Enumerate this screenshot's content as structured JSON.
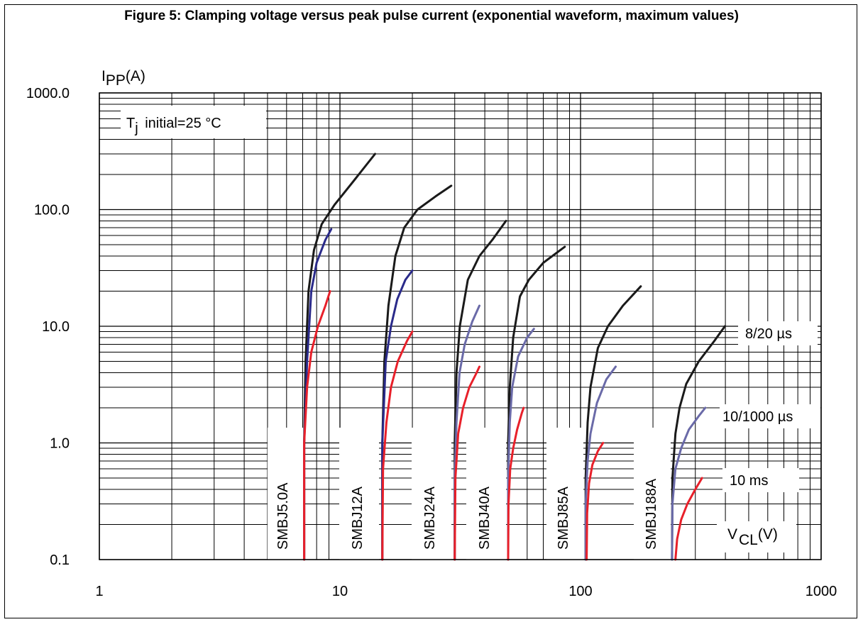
{
  "figure_title": "Figure 5: Clamping voltage versus peak pulse current (exponential waveform, maximum values)",
  "chart_data": {
    "type": "line",
    "title": "Figure 5: Clamping voltage versus peak pulse current (exponential waveform, maximum values)",
    "xlabel": "VCL(V)",
    "ylabel": "IPP(A)",
    "x_scale": "log",
    "y_scale": "log",
    "xlim": [
      1,
      1000
    ],
    "ylim": [
      0.1,
      1000
    ],
    "grid": true,
    "x_ticks": [
      "1",
      "10",
      "100",
      "1000"
    ],
    "y_ticks": [
      "0.1",
      "1.0",
      "10.0",
      "100.0",
      "1000.0"
    ],
    "annotation": "Tj initial=25 °C",
    "waveforms": [
      {
        "label": "8/20 µs",
        "color": "#1a1a1a"
      },
      {
        "label": "10/1000 µs",
        "color": "#6a6aa8"
      },
      {
        "label": "10 ms",
        "color": "#e8202a"
      }
    ],
    "devices": [
      {
        "name": "SMBJ5.0A",
        "series": [
          {
            "waveform": "8/20 µs",
            "color": "#1a1a1a",
            "points": [
              [
                7.1,
                0.1
              ],
              [
                7.1,
                1.0
              ],
              [
                7.2,
                5.0
              ],
              [
                7.4,
                20
              ],
              [
                7.8,
                45
              ],
              [
                8.4,
                75
              ],
              [
                9.5,
                110
              ],
              [
                11.5,
                180
              ],
              [
                14.0,
                300
              ]
            ]
          },
          {
            "waveform": "10/1000 µs",
            "color": "#2a2a8a",
            "points": [
              [
                7.1,
                0.1
              ],
              [
                7.1,
                1.0
              ],
              [
                7.3,
                5.0
              ],
              [
                7.6,
                20
              ],
              [
                8.0,
                35
              ],
              [
                8.7,
                55
              ],
              [
                9.2,
                68
              ]
            ]
          },
          {
            "waveform": "10 ms",
            "color": "#e8202a",
            "points": [
              [
                7.1,
                0.1
              ],
              [
                7.1,
                1.0
              ],
              [
                7.3,
                3.0
              ],
              [
                7.6,
                6.0
              ],
              [
                8.1,
                10
              ],
              [
                8.7,
                15
              ],
              [
                9.1,
                20
              ]
            ]
          }
        ]
      },
      {
        "name": "SMBJ12A",
        "series": [
          {
            "waveform": "8/20 µs",
            "color": "#1a1a1a",
            "points": [
              [
                15.0,
                0.1
              ],
              [
                15.0,
                1.0
              ],
              [
                15.3,
                5.0
              ],
              [
                15.9,
                15
              ],
              [
                17.0,
                40
              ],
              [
                18.5,
                70
              ],
              [
                21.0,
                100
              ],
              [
                25.0,
                130
              ],
              [
                29.0,
                160
              ]
            ]
          },
          {
            "waveform": "10/1000 µs",
            "color": "#2a2a8a",
            "points": [
              [
                15.0,
                0.1
              ],
              [
                15.0,
                1.0
              ],
              [
                15.5,
                5.0
              ],
              [
                16.3,
                10
              ],
              [
                17.3,
                17
              ],
              [
                18.7,
                25
              ],
              [
                20.0,
                30
              ]
            ]
          },
          {
            "waveform": "10 ms",
            "color": "#e8202a",
            "points": [
              [
                15.0,
                0.1
              ],
              [
                15.1,
                0.6
              ],
              [
                15.6,
                1.5
              ],
              [
                16.3,
                3.0
              ],
              [
                17.4,
                5.0
              ],
              [
                19.0,
                7.5
              ],
              [
                20.0,
                9.0
              ]
            ]
          }
        ]
      },
      {
        "name": "SMBJ24A",
        "series": [
          {
            "waveform": "8/20 µs",
            "color": "#1a1a1a",
            "points": [
              [
                30.0,
                0.1
              ],
              [
                30.0,
                1.0
              ],
              [
                30.5,
                4.0
              ],
              [
                31.5,
                10
              ],
              [
                34.0,
                25
              ],
              [
                38.0,
                40
              ],
              [
                43.0,
                55
              ],
              [
                49.0,
                80
              ]
            ]
          },
          {
            "waveform": "10/1000 µs",
            "color": "#6a6aa8",
            "points": [
              [
                30.0,
                0.1
              ],
              [
                30.0,
                0.5
              ],
              [
                30.5,
                1.5
              ],
              [
                31.4,
                4.0
              ],
              [
                33.0,
                7.0
              ],
              [
                35.5,
                11
              ],
              [
                38.0,
                15
              ]
            ]
          },
          {
            "waveform": "10 ms",
            "color": "#e8202a",
            "points": [
              [
                30.0,
                0.1
              ],
              [
                30.2,
                0.5
              ],
              [
                31.0,
                1.2
              ],
              [
                32.5,
                2.0
              ],
              [
                34.5,
                3.0
              ],
              [
                37.0,
                4.0
              ],
              [
                38.0,
                4.5
              ]
            ]
          }
        ]
      },
      {
        "name": "SMBJ40A",
        "series": [
          {
            "waveform": "8/20 µs",
            "color": "#1a1a1a",
            "points": [
              [
                50.0,
                0.1
              ],
              [
                50.0,
                1.0
              ],
              [
                50.8,
                3.0
              ],
              [
                52.5,
                8.0
              ],
              [
                56.0,
                18
              ],
              [
                61.0,
                25
              ],
              [
                70.0,
                35
              ],
              [
                86.0,
                48
              ]
            ]
          },
          {
            "waveform": "10/1000 µs",
            "color": "#6a6aa8",
            "points": [
              [
                50.0,
                0.1
              ],
              [
                50.0,
                0.5
              ],
              [
                50.8,
                1.5
              ],
              [
                52.0,
                3.0
              ],
              [
                55.0,
                5.5
              ],
              [
                60.0,
                8.0
              ],
              [
                64.0,
                9.5
              ]
            ]
          },
          {
            "waveform": "10 ms",
            "color": "#e8202a",
            "points": [
              [
                50.0,
                0.1
              ],
              [
                50.2,
                0.3
              ],
              [
                51.0,
                0.6
              ],
              [
                52.5,
                0.9
              ],
              [
                54.5,
                1.3
              ],
              [
                57.0,
                1.8
              ],
              [
                58.0,
                2.0
              ]
            ]
          }
        ]
      },
      {
        "name": "SMBJ85A",
        "series": [
          {
            "waveform": "8/20 µs",
            "color": "#1a1a1a",
            "points": [
              [
                105.0,
                0.1
              ],
              [
                105.0,
                0.5
              ],
              [
                107.0,
                1.5
              ],
              [
                110.0,
                3.0
              ],
              [
                118.0,
                6.5
              ],
              [
                130.0,
                10
              ],
              [
                150.0,
                15
              ],
              [
                178.0,
                22
              ]
            ]
          },
          {
            "waveform": "10/1000 µs",
            "color": "#6a6aa8",
            "points": [
              [
                105.0,
                0.1
              ],
              [
                105.0,
                0.3
              ],
              [
                107.0,
                0.7
              ],
              [
                110.0,
                1.2
              ],
              [
                117.0,
                2.2
              ],
              [
                128.0,
                3.5
              ],
              [
                140.0,
                4.5
              ]
            ]
          },
          {
            "waveform": "10 ms",
            "color": "#e8202a",
            "points": [
              [
                106.0,
                0.1
              ],
              [
                106.5,
                0.25
              ],
              [
                108.5,
                0.45
              ],
              [
                112.0,
                0.65
              ],
              [
                118.0,
                0.85
              ],
              [
                124.0,
                1.0
              ]
            ]
          }
        ]
      },
      {
        "name": "SMBJ188A",
        "series": [
          {
            "waveform": "8/20 µs",
            "color": "#1a1a1a",
            "points": [
              [
                240.0,
                0.1
              ],
              [
                241.0,
                0.5
              ],
              [
                248.0,
                1.2
              ],
              [
                258.0,
                2.0
              ],
              [
                275.0,
                3.2
              ],
              [
                310.0,
                5.0
              ],
              [
                360.0,
                7.5
              ],
              [
                398.0,
                10
              ]
            ]
          },
          {
            "waveform": "10/1000 µs",
            "color": "#6a6aa8",
            "points": [
              [
                240.0,
                0.1
              ],
              [
                241.0,
                0.3
              ],
              [
                248.0,
                0.6
              ],
              [
                262.0,
                0.9
              ],
              [
                282.0,
                1.3
              ],
              [
                310.0,
                1.7
              ],
              [
                330.0,
                2.0
              ]
            ]
          },
          {
            "waveform": "10 ms",
            "color": "#e8202a",
            "points": [
              [
                248.0,
                0.1
              ],
              [
                252.0,
                0.15
              ],
              [
                262.0,
                0.22
              ],
              [
                278.0,
                0.3
              ],
              [
                300.0,
                0.4
              ],
              [
                320.0,
                0.5
              ]
            ]
          }
        ]
      }
    ]
  }
}
